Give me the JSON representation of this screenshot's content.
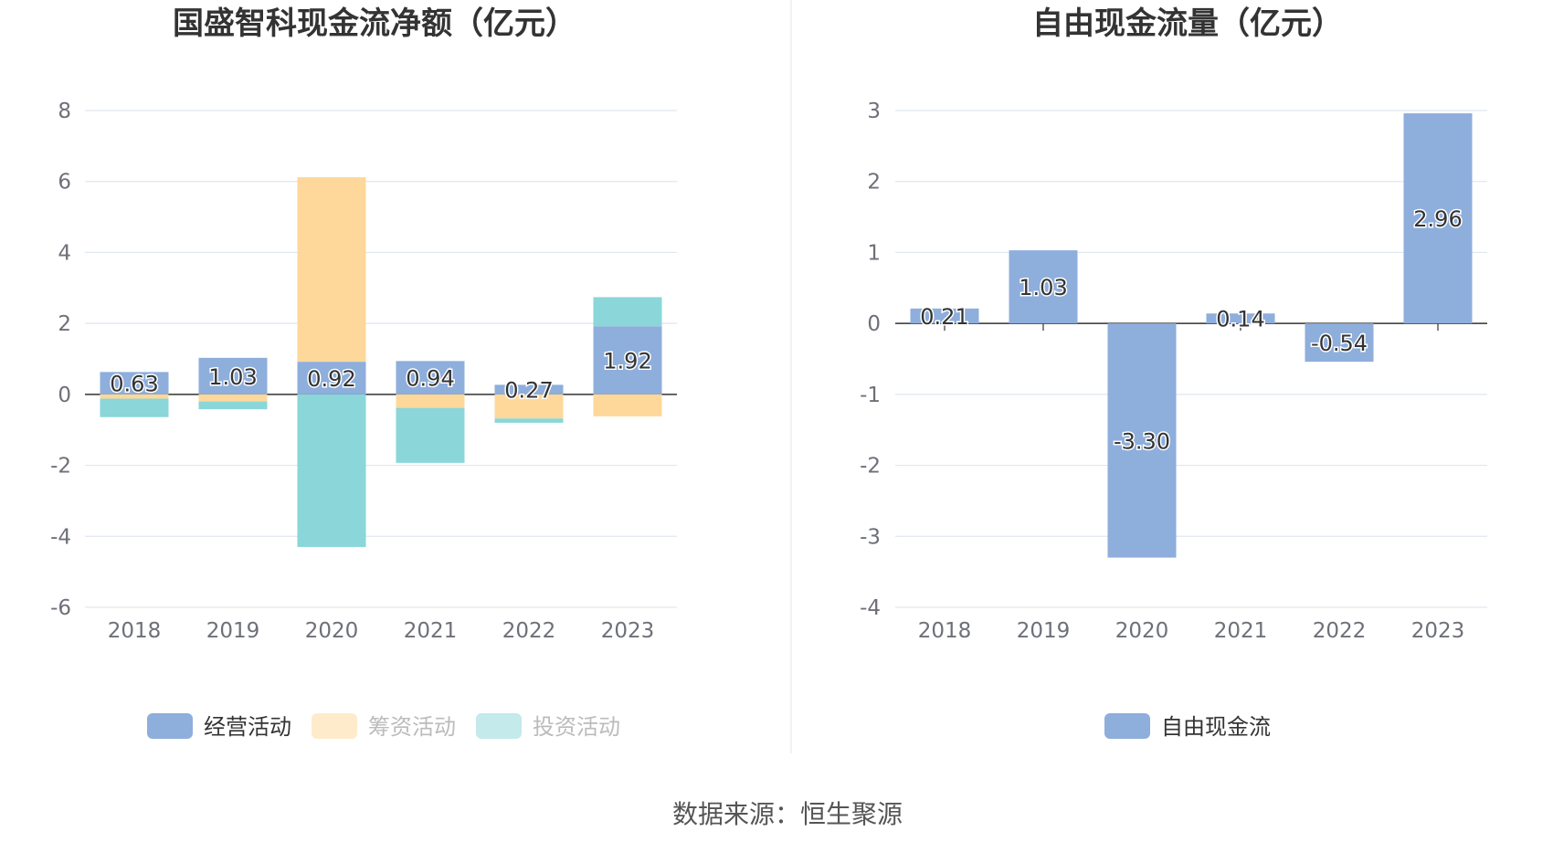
{
  "chart_data": [
    {
      "type": "bar",
      "stacked": true,
      "title": "国盛智科现金流净额（亿元）",
      "categories": [
        "2018",
        "2019",
        "2020",
        "2021",
        "2022",
        "2023"
      ],
      "ylim": [
        -6,
        8
      ],
      "yticks": [
        8,
        6,
        4,
        2,
        0,
        -2,
        -4,
        -6
      ],
      "grid": true,
      "legend_position": "bottom",
      "series": [
        {
          "name": "经营活动",
          "color": "#8eaedc",
          "values": [
            0.63,
            1.03,
            0.92,
            0.94,
            0.27,
            1.92
          ],
          "labels": [
            "0.63",
            "1.03",
            "0.92",
            "0.94",
            "0.27",
            "1.92"
          ],
          "legend_active": true
        },
        {
          "name": "筹资活动",
          "color": "#fed89a",
          "values": [
            -0.12,
            -0.2,
            5.2,
            -0.38,
            -0.68,
            -0.62
          ],
          "legend_active": false
        },
        {
          "name": "投资活动",
          "color": "#8ad6d8",
          "values": [
            -0.52,
            -0.22,
            -4.3,
            -1.55,
            -0.12,
            0.82
          ],
          "legend_active": false
        }
      ]
    },
    {
      "type": "bar",
      "title": "自由现金流量（亿元）",
      "categories": [
        "2018",
        "2019",
        "2020",
        "2021",
        "2022",
        "2023"
      ],
      "ylim": [
        -4,
        3
      ],
      "yticks": [
        3,
        2,
        1,
        0,
        -1,
        -2,
        -3,
        -4
      ],
      "grid": true,
      "legend_position": "bottom",
      "series": [
        {
          "name": "自由现金流",
          "color": "#8eaedc",
          "values": [
            0.21,
            1.03,
            -3.3,
            0.14,
            -0.54,
            2.96
          ],
          "labels": [
            "0.21",
            "1.03",
            "-3.30",
            "0.14",
            "-0.54",
            "2.96"
          ],
          "legend_active": true
        }
      ]
    }
  ],
  "source_text": "数据来源：恒生聚源"
}
